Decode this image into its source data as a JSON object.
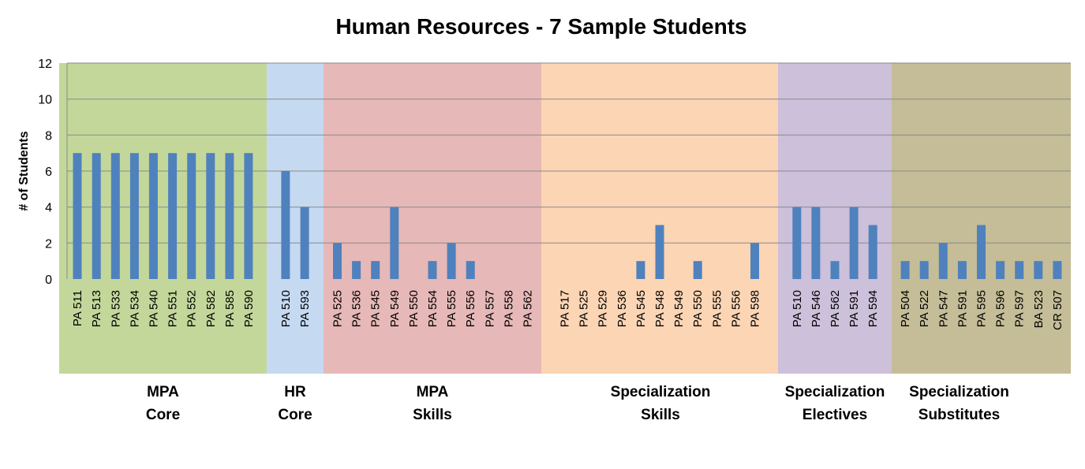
{
  "chart_data": {
    "type": "bar",
    "title": "Human Resources - 7 Sample Students",
    "ylabel": "# of Students",
    "xlabel": "",
    "ylim": [
      0,
      12
    ],
    "yticks": [
      0,
      2,
      4,
      6,
      8,
      10,
      12
    ],
    "grid": true,
    "bar_color": "#4f81bd",
    "groups": [
      {
        "label_lines": [
          "MPA",
          "Core"
        ],
        "color": "#c4d79b",
        "categories": [
          "PA 511",
          "PA 513",
          "PA 533",
          "PA 534",
          "PA 540",
          "PA 551",
          "PA 552",
          "PA 582",
          "PA 585",
          "PA 590"
        ],
        "values": [
          7,
          7,
          7,
          7,
          7,
          7,
          7,
          7,
          7,
          7
        ]
      },
      {
        "label_lines": [
          "HR",
          "Core"
        ],
        "color": "#c5d9f1",
        "categories": [
          "PA 510",
          "PA 593"
        ],
        "values": [
          6,
          4
        ]
      },
      {
        "label_lines": [
          "MPA",
          "Skills"
        ],
        "color": "#e6b8b7",
        "categories": [
          "PA 525",
          "PA 536",
          "PA 545",
          "PA 549",
          "PA 550",
          "PA 554",
          "PA 555",
          "PA 556",
          "PA 557",
          "PA 558",
          "PA 562"
        ],
        "values": [
          2,
          1,
          1,
          4,
          0,
          1,
          2,
          1,
          0,
          0,
          0
        ]
      },
      {
        "label_lines": [
          "Specialization",
          "Skills"
        ],
        "color": "#fcd5b4",
        "categories": [
          "PA 517",
          "PA 525",
          "PA 529",
          "PA 536",
          "PA 545",
          "PA 548",
          "PA 549",
          "PA 550",
          "PA 555",
          "PA 556",
          "PA 598"
        ],
        "values": [
          0,
          0,
          0,
          0,
          1,
          3,
          0,
          1,
          0,
          0,
          2
        ]
      },
      {
        "label_lines": [
          "Specialization",
          "Electives"
        ],
        "color": "#ccc0da",
        "categories": [
          "PA 510",
          "PA 546",
          "PA 562",
          "PA 591",
          "PA 594"
        ],
        "values": [
          4,
          4,
          1,
          4,
          3
        ]
      },
      {
        "label_lines": [
          "Specialization",
          "Substitutes"
        ],
        "color": "#c4bd97",
        "categories": [
          "PA 504",
          "PA 522",
          "PA 547",
          "PA 591",
          "PA 595",
          "PA 596",
          "PA 597",
          "BA 523",
          "CR 507"
        ],
        "values": [
          1,
          1,
          2,
          1,
          3,
          1,
          1,
          1,
          1
        ]
      }
    ]
  }
}
